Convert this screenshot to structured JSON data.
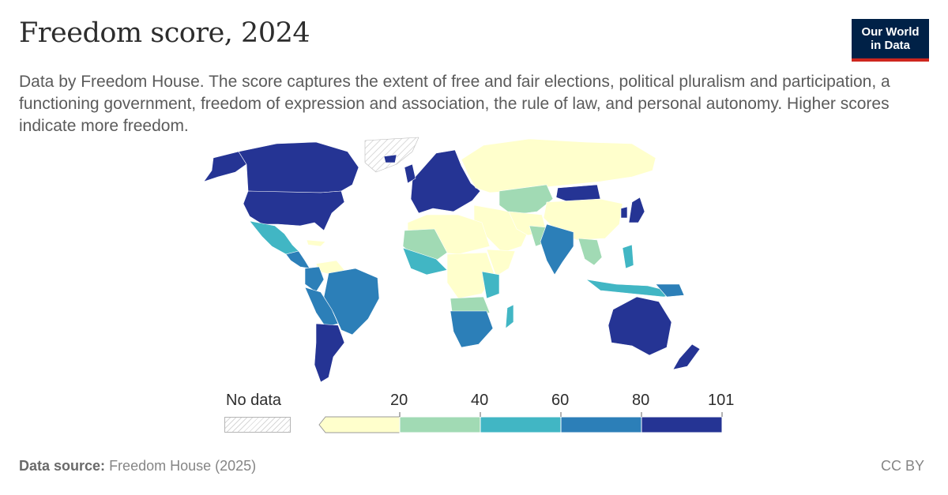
{
  "header": {
    "title": "Freedom score, 2024",
    "subtitle": "Data by Freedom House. The score captures the extent of free and fair elections, political pluralism and participation, a functioning government, freedom of expression and association, the rule of law, and personal autonomy. Higher scores indicate more freedom."
  },
  "logo": {
    "line1": "Our World",
    "line2": "in Data",
    "bg_color": "#002147",
    "accent_color": "#ce261e"
  },
  "legend": {
    "no_data_label": "No data",
    "bins": [
      {
        "from": 0,
        "to": 20,
        "color": "#ffffcc"
      },
      {
        "from": 20,
        "to": 40,
        "color": "#a1dab4"
      },
      {
        "from": 40,
        "to": 60,
        "color": "#41b6c4"
      },
      {
        "from": 60,
        "to": 80,
        "color": "#2c7fb8"
      },
      {
        "from": 80,
        "to": 101,
        "color": "#253494"
      }
    ],
    "tick_labels": [
      "20",
      "40",
      "60",
      "80",
      "101"
    ]
  },
  "footer": {
    "source_label": "Data source:",
    "source_value": "Freedom House (2025)",
    "license": "CC BY"
  }
}
